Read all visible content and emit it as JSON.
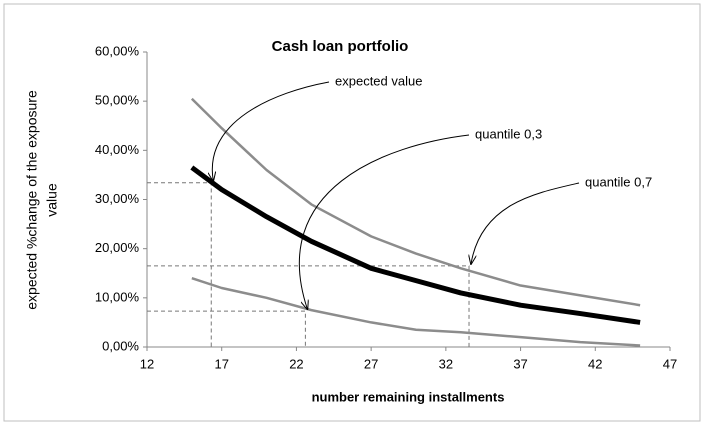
{
  "chart_data": {
    "type": "line",
    "title": "Cash loan portfolio",
    "xlabel": "number remaining installments",
    "ylabel": [
      "expected  %change of the exposure",
      "value"
    ],
    "xlim": [
      12,
      47
    ],
    "xticks": [
      12,
      17,
      22,
      27,
      32,
      37,
      42,
      47
    ],
    "ylim": [
      0,
      60
    ],
    "yticks": [
      {
        "value": 0,
        "label": "0,00%"
      },
      {
        "value": 10,
        "label": "10,00%"
      },
      {
        "value": 20,
        "label": "20,00%"
      },
      {
        "value": 30,
        "label": "30,00%"
      },
      {
        "value": 40,
        "label": "40,00%"
      },
      {
        "value": 50,
        "label": "50,00%"
      },
      {
        "value": 60,
        "label": "60,00%"
      }
    ],
    "series": [
      {
        "name": "expected value",
        "color": "#000000",
        "width": 5,
        "x": [
          15,
          17,
          20,
          23,
          27,
          30,
          33,
          37,
          41,
          45
        ],
        "values": [
          36.5,
          32,
          26.5,
          21.5,
          16,
          13.5,
          11,
          8.5,
          6.8,
          5
        ],
        "guide": {
          "x": 16.3,
          "y": 33.4
        }
      },
      {
        "name": "quantile  0,3",
        "color": "#8c8c8c",
        "width": 2.5,
        "x": [
          15,
          17,
          20,
          23,
          27,
          30,
          33,
          37,
          41,
          45
        ],
        "values": [
          14,
          12,
          10,
          7.5,
          5,
          3.5,
          3,
          2,
          1,
          0.3
        ],
        "guide": {
          "x": 22.6,
          "y": 7.3
        }
      },
      {
        "name": "quantile  0,7",
        "color": "#8c8c8c",
        "width": 2.5,
        "x": [
          15,
          17,
          20,
          23,
          27,
          30,
          33,
          37,
          41,
          45
        ],
        "values": [
          50.5,
          44.5,
          36,
          29,
          22.5,
          19,
          16,
          12.5,
          10.5,
          8.5
        ],
        "guide": {
          "x": 33.55,
          "y": 16.5
        }
      }
    ]
  }
}
